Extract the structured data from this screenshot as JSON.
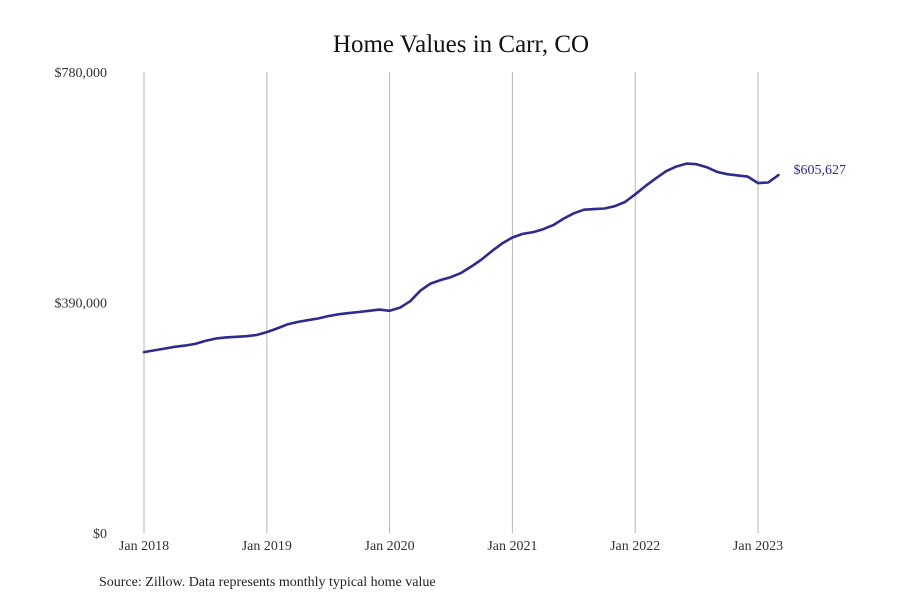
{
  "colors": {
    "series": "#2e2b8c",
    "grid": "#b5b5b5",
    "background": "#ffffff"
  },
  "source_note": "Source: Zillow. Data represents monthly typical home value",
  "chart_data": {
    "type": "line",
    "title": "Home Values in Carr, CO",
    "xlabel": "",
    "ylabel": "",
    "ylim": [
      0,
      780000
    ],
    "y_ticks": [
      {
        "value": 0,
        "label": "$0"
      },
      {
        "value": 390000,
        "label": "$390,000"
      },
      {
        "value": 780000,
        "label": "$780,000"
      }
    ],
    "x_ticks": [
      {
        "value": "2018-01",
        "label": "Jan 2018"
      },
      {
        "value": "2019-01",
        "label": "Jan 2019"
      },
      {
        "value": "2020-01",
        "label": "Jan 2020"
      },
      {
        "value": "2021-01",
        "label": "Jan 2021"
      },
      {
        "value": "2022-01",
        "label": "Jan 2022"
      },
      {
        "value": "2023-01",
        "label": "Jan 2023"
      }
    ],
    "grid": "vertical",
    "end_label": "$605,627",
    "series": [
      {
        "color": "#2e2b8c",
        "x": [
          "2018-01",
          "2018-02",
          "2018-03",
          "2018-04",
          "2018-05",
          "2018-06",
          "2018-07",
          "2018-08",
          "2018-09",
          "2018-10",
          "2018-11",
          "2018-12",
          "2019-01",
          "2019-02",
          "2019-03",
          "2019-04",
          "2019-05",
          "2019-06",
          "2019-07",
          "2019-08",
          "2019-09",
          "2019-10",
          "2019-11",
          "2019-12",
          "2020-01",
          "2020-02",
          "2020-03",
          "2020-04",
          "2020-05",
          "2020-06",
          "2020-07",
          "2020-08",
          "2020-09",
          "2020-10",
          "2020-11",
          "2020-12",
          "2021-01",
          "2021-02",
          "2021-03",
          "2021-04",
          "2021-05",
          "2021-06",
          "2021-07",
          "2021-08",
          "2021-09",
          "2021-10",
          "2021-11",
          "2021-12",
          "2022-01",
          "2022-02",
          "2022-03",
          "2022-04",
          "2022-05",
          "2022-06",
          "2022-07",
          "2022-08",
          "2022-09",
          "2022-10",
          "2022-11",
          "2022-12",
          "2023-01",
          "2023-02",
          "2023-03"
        ],
        "values": [
          306000,
          309000,
          312000,
          315000,
          317000,
          320000,
          325000,
          329000,
          331000,
          332000,
          333000,
          335000,
          340000,
          346000,
          353000,
          357000,
          360000,
          363000,
          367000,
          370000,
          372000,
          374000,
          376000,
          378000,
          376000,
          381000,
          392000,
          410000,
          422000,
          428000,
          433000,
          440000,
          451000,
          463000,
          477000,
          490000,
          500000,
          506000,
          509000,
          514000,
          521000,
          532000,
          541000,
          547000,
          548000,
          549000,
          553000,
          560000,
          573000,
          587000,
          600000,
          612000,
          620000,
          625000,
          624000,
          619000,
          611000,
          607000,
          605000,
          603000,
          592000,
          593000,
          605627
        ]
      }
    ]
  }
}
